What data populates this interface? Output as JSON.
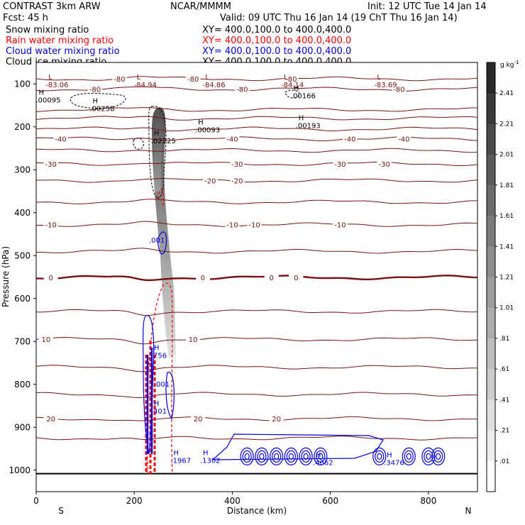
{
  "header": {
    "model": "CONTRAST  3km ARW",
    "org": "NCAR/MMMM",
    "init": "Init: 12 UTC Tue 14 Jan 14",
    "fcst": "Fcst:    45 h",
    "valid": "Valid: 09 UTC Thu 16 Jan 14 (19 ChT Thu 16 Jan 14)"
  },
  "fields": [
    {
      "label": "Snow mixing ratio",
      "xy": "XY= 400.0,100.0 to 400.0,400.0",
      "color": "#000000"
    },
    {
      "label": "Rain water mixing ratio",
      "xy": "XY= 400.0,100.0 to 400.0,400.0",
      "color": "#ff0000"
    },
    {
      "label": "Cloud water mixing ratio",
      "xy": "XY= 400.0,100.0 to 400.0,400.0",
      "color": "#0000dd"
    },
    {
      "label": "Cloud ice mixing ratio",
      "xy": "XY= 400.0,100.0 to 400.0,400.0",
      "color": "#000000"
    }
  ],
  "chart_data": {
    "type": "contour",
    "xlabel": "Distance (km)",
    "ylabel": "Pressure (hPa)",
    "xlim": [
      0,
      900
    ],
    "ylim": [
      1050,
      50
    ],
    "x_ticks": [
      "0",
      "200",
      "400",
      "600",
      "800"
    ],
    "y_ticks": [
      "100",
      "200",
      "300",
      "400",
      "500",
      "600",
      "700",
      "800",
      "900",
      "1000"
    ],
    "x_end_labels": {
      "left": "S",
      "right": "N"
    },
    "colorbar": {
      "unit": "g kg",
      "unit_exp": "-1",
      "levels": [
        "2.41",
        "2.21",
        "2.01",
        "1.81",
        "1.61",
        "1.41",
        "1.21",
        "1.01",
        ".81",
        ".61",
        ".41",
        ".21",
        ".01"
      ]
    },
    "temperature_contours": [
      {
        "p": 88,
        "label": "-80",
        "label_x": [
          170,
          320,
          520
        ]
      },
      {
        "p": 112,
        "label": "-80",
        "label_x": [
          120,
          420,
          740
        ]
      },
      {
        "p": 160,
        "label": "",
        "label_x": []
      },
      {
        "p": 180,
        "label": "",
        "label_x": []
      },
      {
        "p": 205,
        "label": "",
        "label_x": []
      },
      {
        "p": 228,
        "label": "-40",
        "label_x": [
          50,
          400,
          640,
          750
        ]
      },
      {
        "p": 255,
        "label": "",
        "label_x": []
      },
      {
        "p": 286,
        "label": "-30",
        "label_x": [
          30,
          410,
          620,
          710
        ]
      },
      {
        "p": 325,
        "label": "-20",
        "label_x": [
          355,
          410
        ]
      },
      {
        "p": 375,
        "label": "",
        "label_x": []
      },
      {
        "p": 428,
        "label": "-10",
        "label_x": [
          30,
          400,
          445,
          620
        ]
      },
      {
        "p": 490,
        "label": "",
        "label_x": []
      },
      {
        "p": 551,
        "label": "0",
        "label_x": [
          30,
          340,
          480,
          530
        ]
      },
      {
        "p": 630,
        "label": "",
        "label_x": []
      },
      {
        "p": 695,
        "label": "10",
        "label_x": [
          20,
          320
        ]
      },
      {
        "p": 760,
        "label": "",
        "label_x": []
      },
      {
        "p": 823,
        "label": "",
        "label_x": []
      },
      {
        "p": 880,
        "label": "20",
        "label_x": [
          30,
          330,
          490
        ]
      },
      {
        "p": 925,
        "label": "",
        "label_x": []
      }
    ],
    "extrema": [
      {
        "type": "L",
        "x": 25,
        "p": 90,
        "value": "-83.06"
      },
      {
        "type": "L",
        "x": 205,
        "p": 90,
        "value": "-84.94"
      },
      {
        "type": "L",
        "x": 345,
        "p": 90,
        "value": "-84.86"
      },
      {
        "type": "L",
        "x": 505,
        "p": 90,
        "value": "-84.14"
      },
      {
        "type": "L",
        "x": 695,
        "p": 90,
        "value": "-83.69"
      },
      {
        "type": "H",
        "x": 5,
        "p": 125,
        "value": ".00095"
      },
      {
        "type": "H",
        "x": 115,
        "p": 145,
        "value": ".00258"
      },
      {
        "type": "H",
        "x": 525,
        "p": 115,
        "value": ".00166"
      },
      {
        "type": "H",
        "x": 240,
        "p": 220,
        "value": ".02225"
      },
      {
        "type": "H",
        "x": 330,
        "p": 195,
        "value": ".00093"
      },
      {
        "type": "H",
        "x": 535,
        "p": 185,
        "value": ".00193"
      },
      {
        "type": "H",
        "x": 240,
        "p": 720,
        "value": ".756"
      },
      {
        "type": "H",
        "x": 240,
        "p": 850,
        "value": ".401"
      },
      {
        "type": "H",
        "x": 280,
        "p": 965,
        "value": ".1967"
      },
      {
        "type": "H",
        "x": 340,
        "p": 965,
        "value": ".1302"
      },
      {
        "type": "H",
        "x": 570,
        "p": 970,
        "value": ".4662"
      },
      {
        "type": "H",
        "x": 715,
        "p": 970,
        "value": ".3476"
      }
    ],
    "cloud_water_labels": [
      {
        "x": 230,
        "p": 470,
        "value": ".001"
      },
      {
        "x": 240,
        "p": 805,
        "value": ".001"
      }
    ]
  }
}
